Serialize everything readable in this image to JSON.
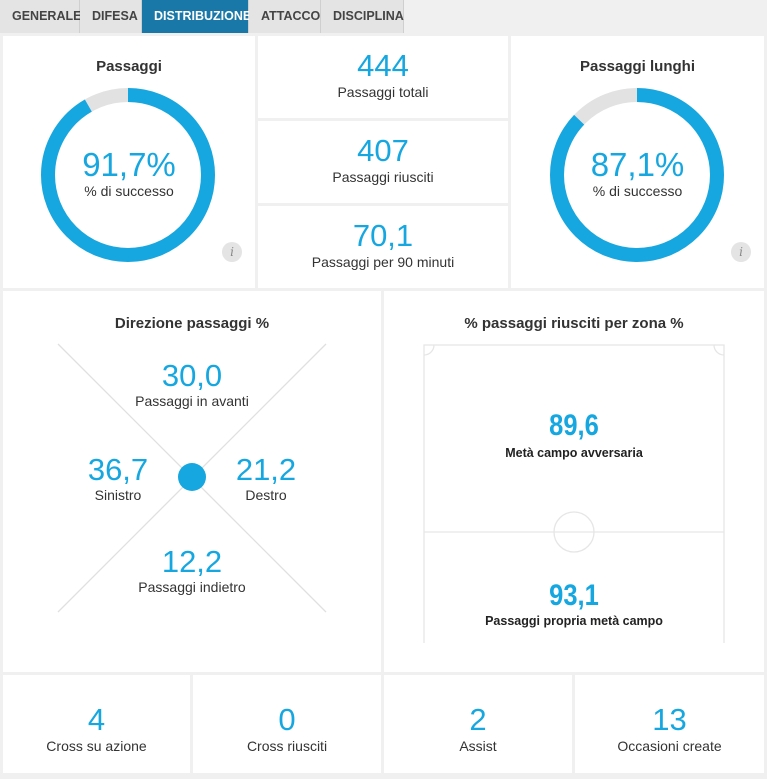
{
  "tabs": [
    {
      "label": "GENERALE",
      "active": false
    },
    {
      "label": "DIFESA",
      "active": false
    },
    {
      "label": "DISTRIBUZIONE",
      "active": true
    },
    {
      "label": "ATTACCO",
      "active": false
    },
    {
      "label": "DISCIPLINA",
      "active": false
    }
  ],
  "passaggi": {
    "title": "Passaggi",
    "value_text": "91,7%",
    "label": "% di successo",
    "fraction": 0.917
  },
  "passaggi_lunghi": {
    "title": "Passaggi lunghi",
    "value_text": "87,1%",
    "label": "% di successo",
    "fraction": 0.871
  },
  "info_label": "i",
  "stats": [
    {
      "value": "444",
      "label": "Passaggi totali"
    },
    {
      "value": "407",
      "label": "Passaggi riusciti"
    },
    {
      "value": "70,1",
      "label": "Passaggi per 90 minuti"
    }
  ],
  "direzione": {
    "title": "Direzione passaggi %",
    "avanti": {
      "value": "30,0",
      "label": "Passaggi in avanti"
    },
    "sinistro": {
      "value": "36,7",
      "label": "Sinistro"
    },
    "destro": {
      "value": "21,2",
      "label": "Destro"
    },
    "indietro": {
      "value": "12,2",
      "label": "Passaggi indietro"
    }
  },
  "zona": {
    "title": "% passaggi riusciti per zona %",
    "avversaria": {
      "value": "89,6",
      "label": "Metà campo avversaria"
    },
    "propria": {
      "value": "93,1",
      "label": "Passaggi propria metà campo"
    }
  },
  "bottom": [
    {
      "value": "4",
      "label": "Cross su azione"
    },
    {
      "value": "0",
      "label": "Cross riusciti"
    },
    {
      "value": "2",
      "label": "Assist"
    },
    {
      "value": "13",
      "label": "Occasioni create"
    }
  ],
  "colors": {
    "accent": "#16a7e0",
    "ring_track": "#e2e2e2",
    "tab_active": "#1a78a8"
  }
}
